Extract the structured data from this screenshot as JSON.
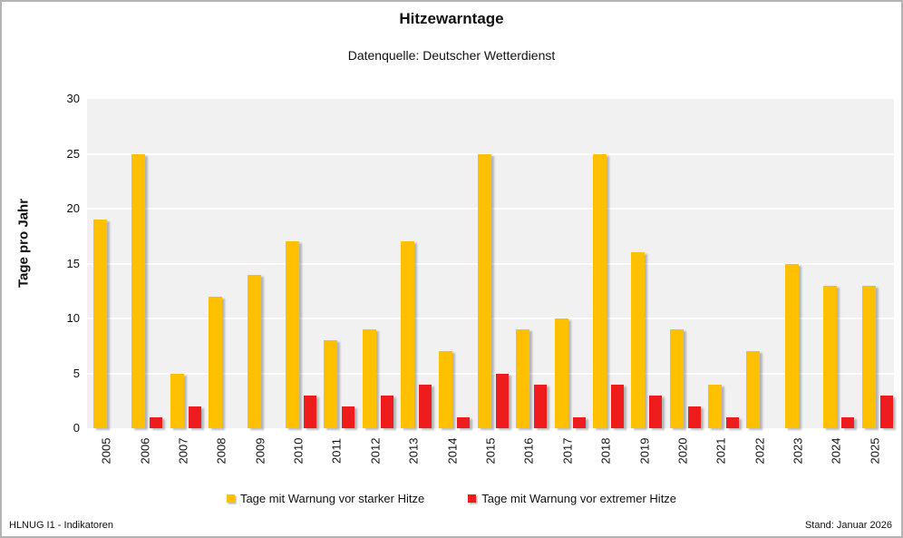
{
  "title": "Hitzewarntage",
  "subtitle": "Datenquelle: Deutscher Wetterdienst",
  "footer": {
    "left": "HLNUG I1 - Indikatoren",
    "right": "Stand: Januar 2026"
  },
  "colors": {
    "strong_heat": "#FFC000",
    "extreme_heat": "#EE1C1C",
    "plot_background": "#F1F1F2",
    "gridline": "#FFFFFF",
    "frame_border": "#B3B3B3"
  },
  "chart_data": {
    "type": "bar",
    "title": "Hitzewarntage",
    "subtitle": "Datenquelle: Deutscher Wetterdienst",
    "xlabel": "",
    "ylabel": "Tage pro Jahr",
    "ylim": [
      0,
      30
    ],
    "yticks": [
      0,
      5,
      10,
      15,
      20,
      25,
      30
    ],
    "grid": true,
    "legend_position": "bottom",
    "categories": [
      "2005",
      "2006",
      "2007",
      "2008",
      "2009",
      "2010",
      "2011",
      "2012",
      "2013",
      "2014",
      "2015",
      "2016",
      "2017",
      "2018",
      "2019",
      "2020",
      "2021",
      "2022",
      "2023",
      "2024",
      "2025"
    ],
    "series": [
      {
        "name": "Tage mit Warnung vor starker Hitze",
        "color": "#FFC000",
        "values": [
          19,
          25,
          5,
          12,
          14,
          17,
          8,
          9,
          17,
          7,
          25,
          9,
          10,
          25,
          16,
          9,
          4,
          7,
          15,
          13,
          13
        ]
      },
      {
        "name": "Tage mit Warnung vor extremer Hitze",
        "color": "#EE1C1C",
        "values": [
          0,
          1,
          2,
          0,
          0,
          3,
          2,
          3,
          4,
          1,
          5,
          4,
          1,
          4,
          3,
          2,
          1,
          0,
          0,
          1,
          3
        ]
      }
    ]
  }
}
